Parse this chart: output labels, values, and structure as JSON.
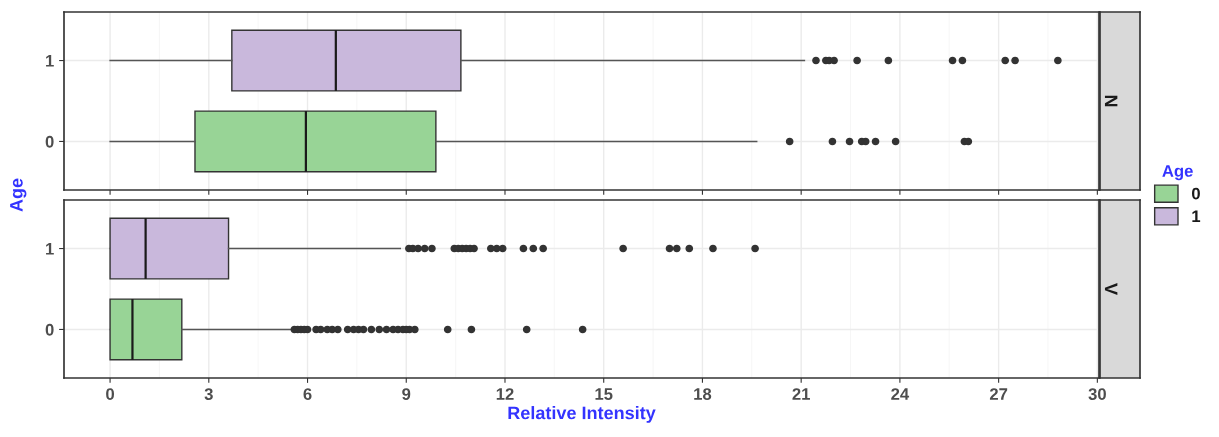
{
  "chart_data": [
    {
      "type": "box",
      "title": "N",
      "ylabel": "Age",
      "legend_title": "Age",
      "legend": "right",
      "orientation": "horizontal",
      "grid": true,
      "tick_labels": "y",
      "categories": [
        "1",
        "0"
      ],
      "xlim": [
        -1.4,
        30.05
      ],
      "xticks": [
        0,
        3,
        6,
        9,
        12,
        15,
        18,
        21,
        24,
        27,
        30
      ],
      "series": [
        {
          "name": "0",
          "color": "#98d496",
          "boxes": [
            null,
            {
              "low": 0,
              "q1": 2.58,
              "median": 5.95,
              "q3": 9.9,
              "high": 19.65,
              "outliers": [
                20.65,
                21.95,
                22.47,
                22.84,
                22.96,
                23.26,
                23.87,
                25.96,
                26.08
              ]
            }
          ]
        },
        {
          "name": "1",
          "color": "#c9b8dc",
          "boxes": [
            {
              "low": 0,
              "q1": 3.7,
              "median": 6.86,
              "q3": 10.66,
              "high": 21.1,
              "outliers": [
                21.45,
                21.75,
                21.85,
                22.0,
                22.7,
                23.65,
                25.6,
                25.9,
                27.2,
                27.5,
                28.8
              ]
            },
            null
          ]
        }
      ]
    },
    {
      "type": "box",
      "title": "V",
      "xlabel": "Relative Intensity",
      "orientation": "horizontal",
      "grid": true,
      "categories": [
        "1",
        "0"
      ],
      "xlim": [
        -1.4,
        30.05
      ],
      "xticks": [
        0,
        3,
        6,
        9,
        12,
        15,
        18,
        21,
        24,
        27,
        30
      ],
      "series": [
        {
          "name": "0",
          "color": "#98d496",
          "boxes": [
            null,
            {
              "low": 0,
              "q1": 0,
              "median": 0.68,
              "q3": 2.18,
              "high": 5.54,
              "outliers": [
                5.6,
                5.7,
                5.8,
                5.9,
                6.0,
                6.26,
                6.4,
                6.6,
                6.75,
                6.92,
                7.22,
                7.4,
                7.55,
                7.7,
                7.94,
                8.18,
                8.4,
                8.6,
                8.75,
                8.9,
                9.0,
                9.1,
                9.26,
                10.26,
                10.98,
                12.66,
                14.36
              ]
            }
          ]
        },
        {
          "name": "1",
          "color": "#c9b8dc",
          "boxes": [
            {
              "low": 0,
              "q1": 0,
              "median": 1.08,
              "q3": 3.6,
              "high": 8.82,
              "outliers": [
                9.08,
                9.2,
                9.36,
                9.56,
                9.78,
                10.46,
                10.58,
                10.7,
                10.82,
                10.94,
                11.06,
                11.57,
                11.75,
                11.93,
                12.56,
                12.86,
                13.16,
                15.59,
                17.0,
                17.22,
                17.6,
                18.32,
                19.6
              ]
            },
            null
          ]
        }
      ]
    }
  ]
}
